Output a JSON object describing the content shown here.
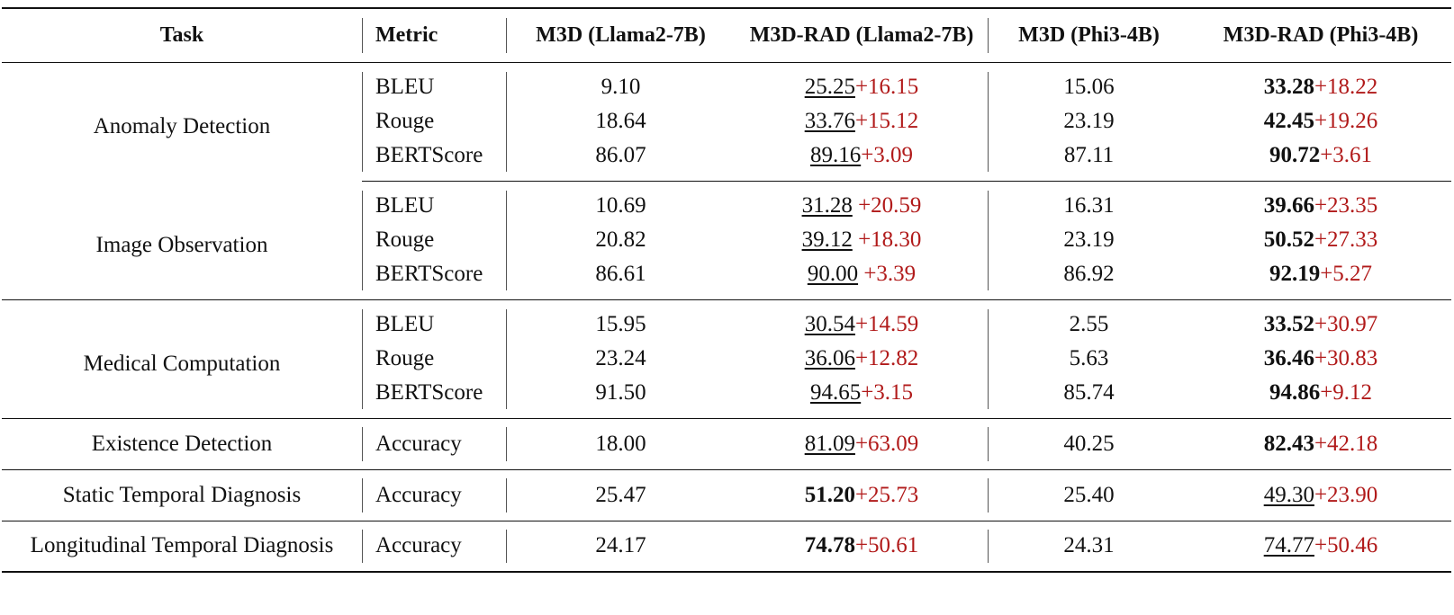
{
  "table": {
    "headers": {
      "task": "Task",
      "metric": "Metric",
      "m3d_llama": "M3D (Llama2-7B)",
      "m3drad_llama": "M3D-RAD (Llama2-7B)",
      "m3d_phi": "M3D (Phi3-4B)",
      "m3drad_phi": "M3D-RAD (Phi3-4B)"
    },
    "tasks": {
      "anomaly": "Anomaly Detection",
      "image_obs": "Image Observation",
      "medical": "Medical Computation",
      "existence": "Existence Detection",
      "static": "Static Temporal Diagnosis",
      "longitudinal": "Longitudinal Temporal Diagnosis"
    },
    "rows": [
      {
        "metric": "BLEU",
        "m3d_llama": "9.10",
        "rad_llama": "25.25",
        "rad_llama_delta": "+16.15",
        "m3d_phi": "15.06",
        "rad_phi": "33.28",
        "rad_phi_delta": "+18.22"
      },
      {
        "metric": "Rouge",
        "m3d_llama": "18.64",
        "rad_llama": "33.76",
        "rad_llama_delta": "+15.12",
        "m3d_phi": "23.19",
        "rad_phi": "42.45",
        "rad_phi_delta": "+19.26"
      },
      {
        "metric": "BERTScore",
        "m3d_llama": "86.07",
        "rad_llama": "89.16",
        "rad_llama_delta": "+3.09",
        "m3d_phi": "87.11",
        "rad_phi": "90.72",
        "rad_phi_delta": "+3.61"
      },
      {
        "metric": "BLEU",
        "m3d_llama": "10.69",
        "rad_llama": "31.28",
        "rad_llama_delta": "+20.59",
        "m3d_phi": "16.31",
        "rad_phi": "39.66",
        "rad_phi_delta": "+23.35"
      },
      {
        "metric": "Rouge",
        "m3d_llama": "20.82",
        "rad_llama": "39.12",
        "rad_llama_delta": "+18.30",
        "m3d_phi": "23.19",
        "rad_phi": "50.52",
        "rad_phi_delta": "+27.33"
      },
      {
        "metric": "BERTScore",
        "m3d_llama": "86.61",
        "rad_llama": "90.00",
        "rad_llama_delta": "+3.39",
        "m3d_phi": "86.92",
        "rad_phi": "92.19",
        "rad_phi_delta": "+5.27"
      },
      {
        "metric": "BLEU",
        "m3d_llama": "15.95",
        "rad_llama": "30.54",
        "rad_llama_delta": "+14.59",
        "m3d_phi": "2.55",
        "rad_phi": "33.52",
        "rad_phi_delta": "+30.97"
      },
      {
        "metric": "Rouge",
        "m3d_llama": "23.24",
        "rad_llama": "36.06",
        "rad_llama_delta": "+12.82",
        "m3d_phi": "5.63",
        "rad_phi": "36.46",
        "rad_phi_delta": "+30.83"
      },
      {
        "metric": "BERTScore",
        "m3d_llama": "91.50",
        "rad_llama": "94.65",
        "rad_llama_delta": "+3.15",
        "m3d_phi": "85.74",
        "rad_phi": "94.86",
        "rad_phi_delta": "+9.12"
      },
      {
        "metric": "Accuracy",
        "m3d_llama": "18.00",
        "rad_llama": "81.09",
        "rad_llama_delta": "+63.09",
        "m3d_phi": "40.25",
        "rad_phi": "82.43",
        "rad_phi_delta": "+42.18"
      },
      {
        "metric": "Accuracy",
        "m3d_llama": "25.47",
        "rad_llama": "51.20",
        "rad_llama_delta": "+25.73",
        "m3d_phi": "25.40",
        "rad_phi": "49.30",
        "rad_phi_delta": "+23.90"
      },
      {
        "metric": "Accuracy",
        "m3d_llama": "24.17",
        "rad_llama": "74.78",
        "rad_llama_delta": "+50.61",
        "m3d_phi": "24.31",
        "rad_phi": "74.77",
        "rad_phi_delta": "+50.46"
      }
    ]
  }
}
